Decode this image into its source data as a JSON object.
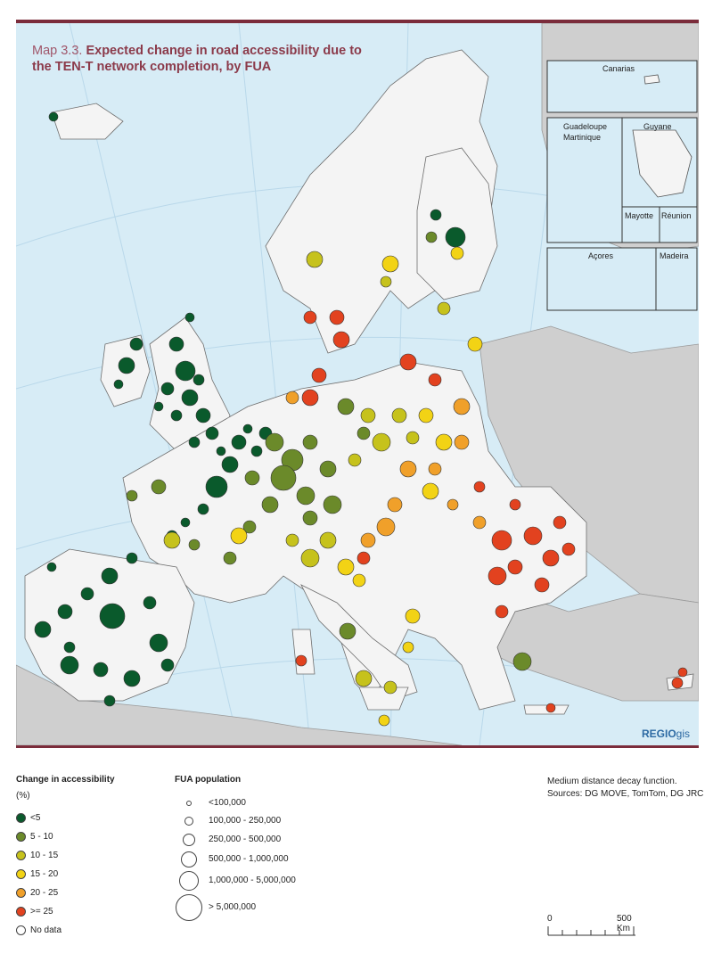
{
  "title": {
    "prefix": "Map 3.3.",
    "main": "Expected change in road accessibility due to the TEN-T network completion, by FUA"
  },
  "insets": {
    "canarias": "Canarias",
    "guadeloupe": "Guadeloupe",
    "martinique": "Martinique",
    "guyane": "Guyane",
    "mayotte": "Mayotte",
    "reunion": "Réunion",
    "acores": "Açores",
    "madeira": "Madeira"
  },
  "logo": {
    "bold": "REGIO",
    "light": "gis"
  },
  "legend_change": {
    "title": "Change in accessibility",
    "unit": "(%)",
    "items": [
      {
        "label": "<5",
        "color": "#0a5a2c"
      },
      {
        "label": "5 - 10",
        "color": "#6b8a2a"
      },
      {
        "label": "10 - 15",
        "color": "#c6c21c"
      },
      {
        "label": "15 - 20",
        "color": "#f2d315"
      },
      {
        "label": "20 - 25",
        "color": "#f0a02a"
      },
      {
        "label": ">= 25",
        "color": "#e2421f"
      },
      {
        "label": "No data",
        "color": "#ffffff"
      }
    ]
  },
  "legend_population": {
    "title": "FUA population",
    "items": [
      {
        "label": "<100,000"
      },
      {
        "label": "100,000 - 250,000"
      },
      {
        "label": "250,000 - 500,000"
      },
      {
        "label": "500,000 - 1,000,000"
      },
      {
        "label": "1,000,000 - 5,000,000"
      },
      {
        "label": "> 5,000,000"
      }
    ]
  },
  "notes": {
    "line1": "Medium distance decay function.",
    "line2": "Sources: DG MOVE, TomTom, DG JRC"
  },
  "scale": {
    "start": "0",
    "end": "500 Km"
  }
}
